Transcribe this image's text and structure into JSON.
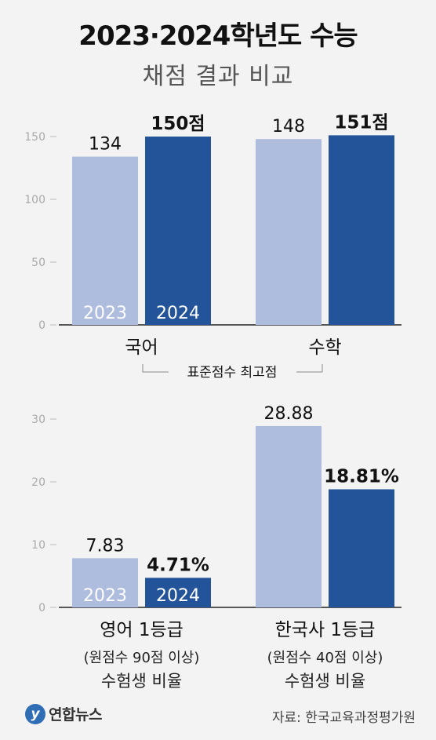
{
  "title": "2023·2024학년도 수능",
  "subtitle": "채점 결과 비교",
  "chart_data": [
    {
      "type": "bar",
      "categories": [
        "국어",
        "수학"
      ],
      "series": [
        {
          "name": "2023",
          "values": [
            134,
            148
          ],
          "labels": [
            "134",
            "148"
          ],
          "color": "#aebcdd"
        },
        {
          "name": "2024",
          "values": [
            150,
            151
          ],
          "labels": [
            "150점",
            "151점"
          ],
          "color": "#23549a"
        }
      ],
      "yticks": [
        0,
        50,
        100,
        150
      ],
      "ylim": [
        0,
        150
      ],
      "group_label": "표준점수 최고점"
    },
    {
      "type": "bar",
      "categories": [
        "영어 1등급",
        "한국사 1등급"
      ],
      "category_notes": [
        [
          "(원점수 90점 이상)",
          "수험생 비율"
        ],
        [
          "(원점수 40점 이상)",
          "수험생 비율"
        ]
      ],
      "series": [
        {
          "name": "2023",
          "values": [
            7.83,
            28.88
          ],
          "labels": [
            "7.83",
            "28.88"
          ],
          "color": "#aebcdd"
        },
        {
          "name": "2024",
          "values": [
            4.71,
            18.81
          ],
          "labels": [
            "4.71%",
            "18.81%"
          ],
          "color": "#23549a"
        }
      ],
      "yticks": [
        0,
        10,
        20,
        30
      ],
      "ylim": [
        0,
        30
      ]
    }
  ],
  "footer": {
    "logo_text": "연합뉴스",
    "source": "자료: 한국교육과정평가원"
  }
}
